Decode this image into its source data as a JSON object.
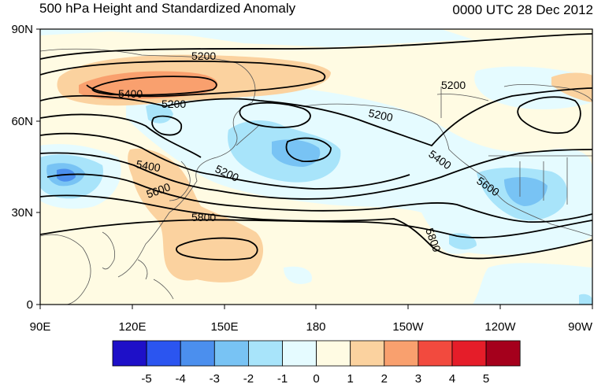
{
  "title": "500 hPa Height and Standardized Anomaly",
  "valid_time": "0000 UTC 28 Dec 2012",
  "lat_ticks": [
    "90N",
    "60N",
    "30N",
    "0"
  ],
  "lon_ticks": [
    "90E",
    "120E",
    "150E",
    "180",
    "150W",
    "120W",
    "90W"
  ],
  "colorbar": {
    "labels": [
      "-5",
      "-4",
      "-3",
      "-2",
      "-1",
      "0",
      "1",
      "2",
      "3",
      "4",
      "5"
    ],
    "colors": [
      "#1e10c8",
      "#2b55f0",
      "#4b8fee",
      "#78c3f4",
      "#a8e4fa",
      "#e5fbff",
      "#fffbe3",
      "#fbd29f",
      "#f9a06e",
      "#f24a3e",
      "#e51d29",
      "#a5001c"
    ]
  },
  "contour_labels": [
    "5200",
    "5400",
    "5200",
    "5200",
    "5200",
    "5400",
    "5200",
    "5400",
    "5600",
    "5800",
    "5600",
    "5800"
  ],
  "colors": {
    "land_outline": "#555555",
    "contour": "#000000"
  }
}
